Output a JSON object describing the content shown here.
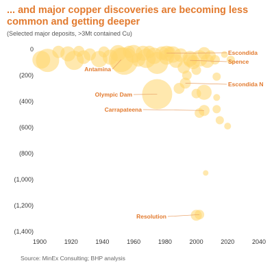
{
  "title": "... and major copper discoveries are becoming less common and getting deeper",
  "subtitle": "(Selected major deposits, >3Mt contained Cu)",
  "source": "Source: MinEx Consulting; BHP analysis",
  "chart_data": {
    "type": "scatter",
    "title": "... and major copper discoveries are becoming less common and getting deeper",
    "subtitle": "(Selected major deposits, >3Mt contained Cu)",
    "xlim": [
      1900,
      2040
    ],
    "ylim": [
      0,
      1400
    ],
    "y_inverted": true,
    "grid": false,
    "x_ticks": [
      1900,
      1920,
      1940,
      1960,
      1980,
      2000,
      2020,
      2040
    ],
    "y_ticks": [
      0,
      200,
      400,
      600,
      800,
      1000,
      1200,
      1400
    ],
    "x_tick_labels": [
      "1900",
      "1920",
      "1940",
      "1960",
      "1980",
      "2000",
      "2020",
      "2040"
    ],
    "y_tick_labels": [
      "0",
      "(200)",
      "(400)",
      "(600)",
      "(800)",
      "(1,000)",
      "(1,200)",
      "(1,400)"
    ],
    "bubble_color": "#FFD66B",
    "label_color": "#E27A2E",
    "points": [
      {
        "x": 1901,
        "y": 80,
        "size": 13
      },
      {
        "x": 1905,
        "y": 85,
        "size": 17
      },
      {
        "x": 1912,
        "y": 20,
        "size": 9
      },
      {
        "x": 1918,
        "y": 35,
        "size": 11
      },
      {
        "x": 1922,
        "y": 85,
        "size": 14
      },
      {
        "x": 1925,
        "y": 15,
        "size": 8
      },
      {
        "x": 1928,
        "y": 60,
        "size": 10
      },
      {
        "x": 1932,
        "y": 40,
        "size": 9
      },
      {
        "x": 1938,
        "y": 75,
        "size": 12
      },
      {
        "x": 1941,
        "y": 20,
        "size": 8
      },
      {
        "x": 1945,
        "y": 60,
        "size": 11
      },
      {
        "x": 1950,
        "y": 30,
        "size": 12
      },
      {
        "x": 1954,
        "y": 90,
        "size": 20
      },
      {
        "x": 1957,
        "y": 20,
        "size": 9
      },
      {
        "x": 1960,
        "y": 35,
        "size": 13
      },
      {
        "x": 1963,
        "y": 80,
        "size": 10
      },
      {
        "x": 1966,
        "y": 30,
        "size": 11
      },
      {
        "x": 1968,
        "y": 70,
        "size": 14
      },
      {
        "x": 1970,
        "y": 20,
        "size": 9
      },
      {
        "x": 1973,
        "y": 50,
        "size": 12
      },
      {
        "x": 1975,
        "y": 105,
        "size": 16
      },
      {
        "x": 1978,
        "y": 30,
        "size": 10
      },
      {
        "x": 1981,
        "y": 60,
        "size": 11
      },
      {
        "x": 1983,
        "y": 20,
        "size": 8
      },
      {
        "x": 1985,
        "y": 40,
        "size": 12
      },
      {
        "x": 1987,
        "y": 90,
        "size": 10
      },
      {
        "x": 1990,
        "y": 45,
        "size": 10
      },
      {
        "x": 1992,
        "y": 140,
        "size": 9
      },
      {
        "x": 1994,
        "y": 200,
        "size": 7
      },
      {
        "x": 1996,
        "y": 70,
        "size": 11
      },
      {
        "x": 1998,
        "y": 100,
        "size": 10
      },
      {
        "x": 2000,
        "y": 160,
        "size": 7
      },
      {
        "x": 2002,
        "y": 70,
        "size": 12
      },
      {
        "x": 2005,
        "y": 30,
        "size": 9
      },
      {
        "x": 2007,
        "y": 90,
        "size": 10
      },
      {
        "x": 2009,
        "y": 50,
        "size": 8
      },
      {
        "x": 2012,
        "y": 80,
        "size": 7
      },
      {
        "x": 1989,
        "y": 300,
        "size": 8
      },
      {
        "x": 2005,
        "y": 330,
        "size": 11
      },
      {
        "x": 2013,
        "y": 210,
        "size": 6
      },
      {
        "x": 2000,
        "y": 340,
        "size": 7
      },
      {
        "x": 2013,
        "y": 370,
        "size": 5
      },
      {
        "x": 2013,
        "y": 460,
        "size": 6
      },
      {
        "x": 2002,
        "y": 490,
        "size": 7
      },
      {
        "x": 2015,
        "y": 545,
        "size": 6
      },
      {
        "x": 2020,
        "y": 590,
        "size": 5
      },
      {
        "x": 2006,
        "y": 950,
        "size": 4
      },
      {
        "x": 2000,
        "y": 1275,
        "size": 8
      },
      {
        "x": 2022,
        "y": 80,
        "size": 6
      },
      {
        "x": 2018,
        "y": 40,
        "size": 5
      }
    ],
    "labeled_points": [
      {
        "name": "Escondida",
        "x": 1981,
        "y": 30,
        "size": 11
      },
      {
        "name": "Spence",
        "x": 1996,
        "y": 85,
        "size": 10
      },
      {
        "name": "Antamina",
        "x": 1952,
        "y": 80,
        "size": 18
      },
      {
        "name": "Escondida N",
        "x": 1993,
        "y": 260,
        "size": 8
      },
      {
        "name": "Olympic Dam",
        "x": 1975,
        "y": 345,
        "size": 22
      },
      {
        "name": "Carrapateena",
        "x": 2005,
        "y": 470,
        "size": 8
      },
      {
        "name": "Resolution",
        "x": 2002,
        "y": 1270,
        "size": 7
      }
    ]
  }
}
